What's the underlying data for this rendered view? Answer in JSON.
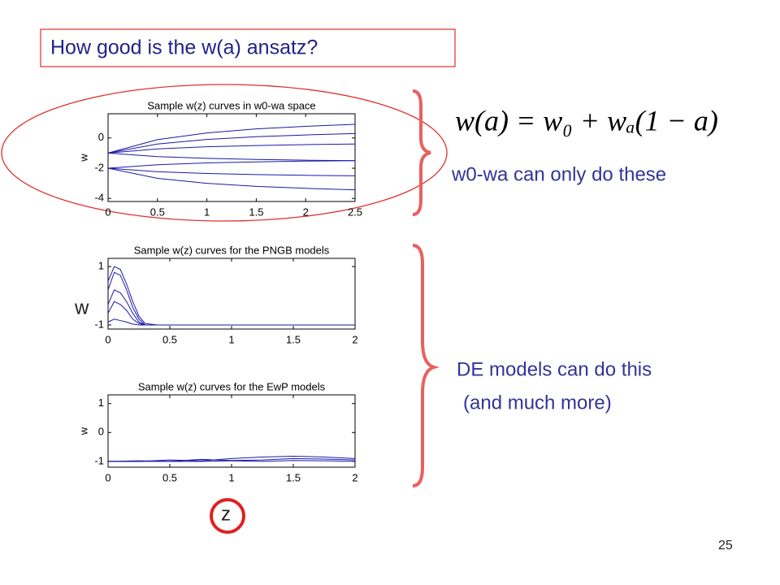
{
  "slide": {
    "title": "How good is the w(a) ansatz?",
    "equation": "w(a) = w₀ + wₐ(1 − a)",
    "note_top": "w0-wa can only do these",
    "note_bottom": [
      "DE models can do this",
      "(and much more)"
    ],
    "side_label": "w",
    "x_label": "z",
    "page_number": "25"
  },
  "chart_data": [
    {
      "type": "line",
      "title": "Sample w(z) curves in w0-wa space",
      "ylabel": "w",
      "color": "#1a1aa8",
      "x": [
        0,
        0.5,
        1,
        1.5,
        2,
        2.5
      ],
      "xlim": [
        0,
        2.5
      ],
      "xticks": [
        0,
        0.5,
        1,
        1.5,
        2,
        2.5
      ],
      "ylim": [
        -4.2,
        1.6
      ],
      "yticks": [
        0,
        -2,
        -4
      ],
      "series": [
        {
          "values": [
            -1,
            -0.11,
            0.33,
            0.6,
            0.77,
            0.9
          ]
        },
        {
          "values": [
            -1,
            -0.4,
            -0.1,
            0.08,
            0.2,
            0.29
          ]
        },
        {
          "values": [
            -1,
            -0.72,
            -0.58,
            -0.5,
            -0.44,
            -0.4
          ]
        },
        {
          "values": [
            -1,
            -1.23,
            -1.35,
            -1.42,
            -1.47,
            -1.5
          ]
        },
        {
          "values": [
            -2,
            -1.77,
            -1.65,
            -1.58,
            -1.53,
            -1.5
          ]
        },
        {
          "values": [
            -2,
            -2.23,
            -2.35,
            -2.42,
            -2.47,
            -2.5
          ]
        },
        {
          "values": [
            -2,
            -2.67,
            -3,
            -3.2,
            -3.33,
            -3.43
          ]
        }
      ]
    },
    {
      "type": "line",
      "title": "Sample w(z) curves for the PNGB models",
      "color": "#1a1aa8",
      "x": [
        0,
        0.05,
        0.1,
        0.15,
        0.2,
        0.25,
        0.3,
        0.4,
        0.6,
        2
      ],
      "xlim": [
        0,
        2
      ],
      "xticks": [
        0,
        0.5,
        1,
        1.5,
        2
      ],
      "ylim": [
        -1.14,
        1.28
      ],
      "yticks": [
        1,
        -1
      ],
      "series": [
        {
          "values": [
            0.5,
            1.0,
            0.9,
            0.4,
            -0.2,
            -0.7,
            -0.95,
            -1,
            -1,
            -1
          ]
        },
        {
          "values": [
            0.2,
            0.8,
            0.7,
            0.2,
            -0.4,
            -0.8,
            -1,
            -1,
            -1,
            -1
          ]
        },
        {
          "values": [
            -0.3,
            0.2,
            0.1,
            -0.2,
            -0.6,
            -0.9,
            -1,
            -1,
            -1,
            -1
          ]
        },
        {
          "values": [
            -0.6,
            -0.2,
            -0.3,
            -0.5,
            -0.8,
            -0.95,
            -1,
            -1,
            -1,
            -1
          ]
        },
        {
          "values": [
            -0.9,
            -0.8,
            -0.85,
            -0.9,
            -0.97,
            -1,
            -1,
            -1,
            -1,
            -1
          ]
        }
      ]
    },
    {
      "type": "line",
      "title": "Sample w(z) curves for the EwP models",
      "ylabel": "w",
      "color": "#1a1aa8",
      "x": [
        0,
        0.25,
        0.5,
        0.75,
        1,
        1.25,
        1.5,
        1.75,
        2
      ],
      "xlim": [
        0,
        2
      ],
      "xticks": [
        0,
        0.5,
        1,
        1.5,
        2
      ],
      "ylim": [
        -1.2,
        1.3
      ],
      "yticks": [
        1,
        0,
        -1
      ],
      "series": [
        {
          "values": [
            -1,
            -1,
            -0.95,
            -0.98,
            -0.9,
            -0.85,
            -0.82,
            -0.85,
            -0.9
          ]
        },
        {
          "values": [
            -1,
            -0.98,
            -1,
            -0.93,
            -0.97,
            -0.95,
            -0.9,
            -0.92,
            -0.95
          ]
        },
        {
          "values": [
            -1,
            -1,
            -1,
            -1,
            -0.98,
            -1,
            -0.97,
            -0.98,
            -1
          ]
        }
      ]
    }
  ]
}
